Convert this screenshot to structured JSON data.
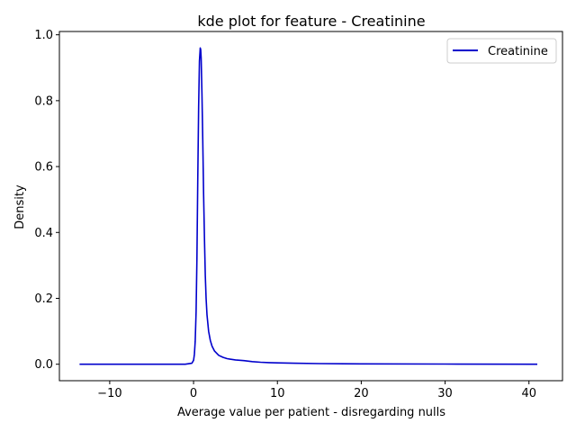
{
  "chart_data": {
    "type": "line",
    "title": "kde plot for feature -  Creatinine",
    "xlabel": "Average value per patient - disregarding nulls",
    "ylabel": "Density",
    "xlim": [
      -16,
      44
    ],
    "ylim": [
      -0.05,
      1.01
    ],
    "xticks": [
      -10,
      0,
      10,
      20,
      30,
      40
    ],
    "xtick_labels": [
      "−10",
      "0",
      "10",
      "20",
      "30",
      "40"
    ],
    "yticks": [
      0.0,
      0.2,
      0.4,
      0.6,
      0.8,
      1.0
    ],
    "ytick_labels": [
      "0.0",
      "0.2",
      "0.4",
      "0.6",
      "0.8",
      "1.0"
    ],
    "grid": false,
    "legend_position": "upper right",
    "series": [
      {
        "name": "Creatinine",
        "color": "#0000cc",
        "x": [
          -13.6,
          -10,
          -5,
          -1,
          -0.2,
          0.0,
          0.1,
          0.2,
          0.3,
          0.4,
          0.5,
          0.6,
          0.7,
          0.8,
          0.85,
          0.9,
          0.95,
          1.0,
          1.1,
          1.2,
          1.3,
          1.4,
          1.5,
          1.6,
          1.8,
          2.0,
          2.2,
          2.5,
          3.0,
          3.5,
          4.0,
          5.0,
          6.0,
          7.0,
          8.0,
          9.0,
          10.0,
          12.0,
          15.0,
          20.0,
          30.0,
          41.0
        ],
        "y": [
          0.0,
          0.0,
          0.0,
          0.0,
          0.003,
          0.012,
          0.03,
          0.07,
          0.16,
          0.32,
          0.55,
          0.78,
          0.92,
          0.96,
          0.955,
          0.93,
          0.88,
          0.82,
          0.68,
          0.52,
          0.38,
          0.27,
          0.2,
          0.15,
          0.1,
          0.072,
          0.055,
          0.04,
          0.027,
          0.021,
          0.017,
          0.013,
          0.011,
          0.008,
          0.006,
          0.005,
          0.004,
          0.003,
          0.002,
          0.001,
          0.0005,
          0.0
        ]
      }
    ]
  }
}
